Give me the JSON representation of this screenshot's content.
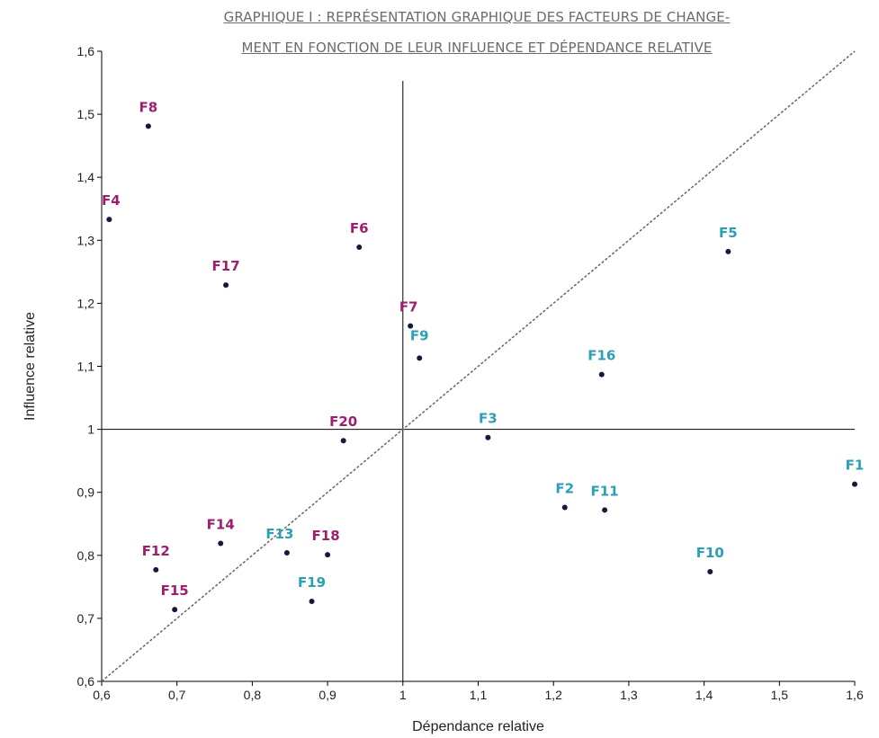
{
  "colors": {
    "magenta": "#9e1f6e",
    "teal": "#2a9fb5",
    "point": "#141a3c",
    "axis": "#000000",
    "diagonal": "#666666"
  },
  "chart_data": {
    "type": "scatter",
    "title_line1": "GRAPHIQUE I : REPRÉSENTATION GRAPHIQUE DES FACTEURS DE CHANGE-",
    "title_line2": "MENT EN FONCTION DE LEUR INFLUENCE ET DÉPENDANCE RELATIVE",
    "xlabel": "Dépendance relative",
    "ylabel": "Influence relative",
    "xlim": [
      0.6,
      1.6
    ],
    "ylim": [
      0.6,
      1.6
    ],
    "x_ticks": [
      "0,6",
      "0,7",
      "0,8",
      "0,9",
      "1",
      "1,1",
      "1,2",
      "1,3",
      "1,4",
      "1,5",
      "1,6"
    ],
    "y_ticks": [
      "0,6",
      "0,7",
      "0,8",
      "0,9",
      "1",
      "1,1",
      "1,2",
      "1,3",
      "1,4",
      "1,5",
      "1,6"
    ],
    "reference_lines": {
      "x": 1,
      "y": 1,
      "diagonal": true,
      "diagonal_style": "dashed"
    },
    "grid": false,
    "points": [
      {
        "label": "F1",
        "x": 1.6,
        "y": 0.913,
        "color": "teal"
      },
      {
        "label": "F2",
        "x": 1.215,
        "y": 0.876,
        "color": "teal"
      },
      {
        "label": "F3",
        "x": 1.113,
        "y": 0.987,
        "color": "teal"
      },
      {
        "label": "F4",
        "x": 0.61,
        "y": 1.333,
        "color": "magenta"
      },
      {
        "label": "F5",
        "x": 1.432,
        "y": 1.282,
        "color": "teal"
      },
      {
        "label": "F6",
        "x": 0.942,
        "y": 1.289,
        "color": "magenta"
      },
      {
        "label": "F7",
        "x": 1.01,
        "y": 1.164,
        "color": "magenta"
      },
      {
        "label": "F8",
        "x": 0.662,
        "y": 1.481,
        "color": "magenta"
      },
      {
        "label": "F9",
        "x": 1.022,
        "y": 1.113,
        "color": "teal"
      },
      {
        "label": "F10",
        "x": 1.408,
        "y": 0.774,
        "color": "teal"
      },
      {
        "label": "F11",
        "x": 1.268,
        "y": 0.872,
        "color": "teal"
      },
      {
        "label": "F12",
        "x": 0.672,
        "y": 0.777,
        "color": "magenta"
      },
      {
        "label": "F13",
        "x": 0.846,
        "y": 0.804,
        "color": "teal"
      },
      {
        "label": "F14",
        "x": 0.758,
        "y": 0.819,
        "color": "magenta"
      },
      {
        "label": "F15",
        "x": 0.697,
        "y": 0.714,
        "color": "magenta"
      },
      {
        "label": "F16",
        "x": 1.264,
        "y": 1.087,
        "color": "teal"
      },
      {
        "label": "F17",
        "x": 0.765,
        "y": 1.229,
        "color": "magenta"
      },
      {
        "label": "F18",
        "x": 0.9,
        "y": 0.801,
        "color": "magenta"
      },
      {
        "label": "F19",
        "x": 0.879,
        "y": 0.727,
        "color": "teal"
      },
      {
        "label": "F20",
        "x": 0.921,
        "y": 0.982,
        "color": "magenta"
      }
    ]
  }
}
